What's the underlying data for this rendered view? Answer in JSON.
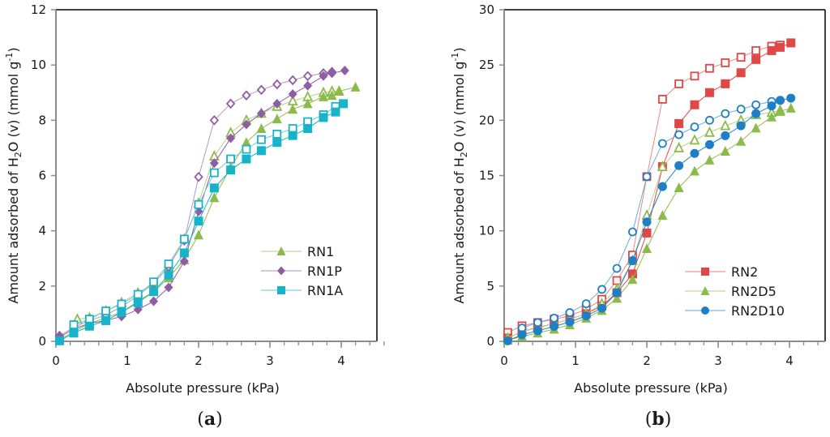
{
  "chart_data": [
    {
      "type": "line",
      "panel_label": "a",
      "title": "",
      "xlabel": "Absolute pressure (kPa)",
      "ylabel_main": "Amount adsorbed of H",
      "ylabel_sub": "2",
      "ylabel_mid": "O (v) (mmol g",
      "ylabel_sup": "-1",
      "ylabel_end": ")",
      "xlim": [
        0,
        4.5
      ],
      "ylim": [
        0,
        12
      ],
      "xticks": [
        0,
        1,
        2,
        3,
        4
      ],
      "xtick_labels": [
        "0",
        "1",
        "2",
        "3",
        "4"
      ],
      "yticks": [
        0,
        2,
        4,
        6,
        8,
        10,
        12
      ],
      "ytick_labels": [
        "0",
        "2",
        "4",
        "6",
        "8",
        "10",
        "12"
      ],
      "x_minor_step": 0.2,
      "grid": false,
      "legend_position": "lower-right",
      "series": [
        {
          "name": "RN1",
          "color": "#8dbb4b",
          "marker": "triangle",
          "adsorption": {
            "x": [
              0.05,
              0.25,
              0.47,
              0.7,
              0.92,
              1.15,
              1.37,
              1.58,
              1.8,
              2.0,
              2.22,
              2.45,
              2.67,
              2.88,
              3.1,
              3.32,
              3.53,
              3.75,
              3.87,
              3.97,
              4.2
            ],
            "y": [
              0.05,
              0.35,
              0.65,
              0.85,
              1.05,
              1.45,
              1.8,
              2.3,
              2.95,
              3.85,
              5.2,
              6.3,
              7.2,
              7.7,
              8.05,
              8.4,
              8.6,
              8.85,
              8.9,
              9.05,
              9.2
            ]
          },
          "desorption": {
            "x": [
              3.75,
              3.87,
              3.97,
              3.53,
              3.32,
              3.1,
              2.88,
              2.67,
              2.45,
              2.22,
              2.0,
              1.8,
              1.58,
              1.37,
              1.15,
              0.92,
              0.7,
              0.47,
              0.3
            ],
            "y": [
              9.0,
              9.05,
              9.05,
              8.85,
              8.7,
              8.5,
              8.25,
              8.0,
              7.55,
              6.7,
              5.0,
              3.7,
              2.7,
              2.1,
              1.75,
              1.4,
              1.1,
              0.85,
              0.8
            ]
          }
        },
        {
          "name": "RN1P",
          "color": "#8e5ea2",
          "marker": "diamond",
          "adsorption": {
            "x": [
              0.05,
              0.25,
              0.47,
              0.7,
              0.92,
              1.15,
              1.37,
              1.58,
              1.8,
              2.0,
              2.22,
              2.45,
              2.67,
              2.88,
              3.1,
              3.32,
              3.53,
              3.75,
              3.87,
              4.05
            ],
            "y": [
              0.15,
              0.45,
              0.65,
              0.75,
              0.9,
              1.15,
              1.45,
              1.95,
              2.9,
              4.7,
              6.45,
              7.35,
              7.85,
              8.25,
              8.6,
              8.95,
              9.25,
              9.6,
              9.7,
              9.8
            ]
          },
          "desorption": {
            "x": [
              3.87,
              3.75,
              3.53,
              3.32,
              3.1,
              2.88,
              2.67,
              2.45,
              2.22,
              2.0,
              1.8,
              1.58,
              1.37,
              1.15,
              0.92,
              0.7,
              0.47,
              0.25,
              0.05
            ],
            "y": [
              9.75,
              9.7,
              9.6,
              9.45,
              9.3,
              9.1,
              8.9,
              8.6,
              8.0,
              5.95,
              3.65,
              2.7,
              2.1,
              1.65,
              1.25,
              0.95,
              0.75,
              0.5,
              0.2
            ]
          }
        },
        {
          "name": "RN1A",
          "color": "#17b3c8",
          "marker": "square",
          "adsorption": {
            "x": [
              0.05,
              0.25,
              0.47,
              0.7,
              0.92,
              1.15,
              1.37,
              1.58,
              1.8,
              2.0,
              2.22,
              2.45,
              2.67,
              2.88,
              3.1,
              3.32,
              3.53,
              3.75,
              3.92,
              4.03
            ],
            "y": [
              0.02,
              0.3,
              0.55,
              0.75,
              1.05,
              1.4,
              1.8,
              2.4,
              3.2,
              4.35,
              5.55,
              6.2,
              6.6,
              6.9,
              7.2,
              7.45,
              7.7,
              8.1,
              8.3,
              8.6
            ]
          },
          "desorption": {
            "x": [
              3.92,
              3.75,
              3.53,
              3.32,
              3.1,
              2.88,
              2.67,
              2.45,
              2.22,
              2.0,
              1.8,
              1.58,
              1.37,
              1.15,
              0.92,
              0.7,
              0.47,
              0.25
            ],
            "y": [
              8.5,
              8.2,
              7.95,
              7.7,
              7.5,
              7.3,
              6.95,
              6.6,
              6.1,
              4.95,
              3.7,
              2.8,
              2.15,
              1.7,
              1.35,
              1.1,
              0.8,
              0.6
            ]
          }
        }
      ]
    },
    {
      "type": "line",
      "panel_label": "b",
      "title": "",
      "xlabel": "Absolute pressure (kPa)",
      "ylabel_main": "Amount adsorbed of H",
      "ylabel_sub": "2",
      "ylabel_mid": "O (v) (mmol g",
      "ylabel_sup": "-1",
      "ylabel_end": ")",
      "xlim": [
        0,
        4.5
      ],
      "ylim": [
        0,
        30
      ],
      "xticks": [
        0,
        1,
        2,
        3,
        4
      ],
      "xtick_labels": [
        "0",
        "1",
        "2",
        "3",
        "4"
      ],
      "yticks": [
        0,
        5,
        10,
        15,
        20,
        25,
        30
      ],
      "ytick_labels": [
        "0",
        "5",
        "10",
        "15",
        "20",
        "25",
        "30"
      ],
      "x_minor_step": 0.2,
      "grid": false,
      "legend_position": "lower-right",
      "series": [
        {
          "name": "RN2",
          "color": "#e04848",
          "marker": "square",
          "adsorption": {
            "x": [
              0.05,
              0.25,
              0.47,
              0.7,
              0.92,
              1.15,
              1.37,
              1.58,
              1.8,
              2.0,
              2.22,
              2.45,
              2.67,
              2.88,
              3.1,
              3.32,
              3.53,
              3.75,
              3.87,
              4.02
            ],
            "y": [
              0.3,
              0.9,
              1.25,
              1.6,
              2.0,
              2.5,
              3.2,
              4.4,
              6.1,
              9.8,
              15.8,
              19.7,
              21.4,
              22.5,
              23.3,
              24.3,
              25.5,
              26.3,
              26.6,
              27.0
            ]
          },
          "desorption": {
            "x": [
              3.87,
              3.75,
              3.53,
              3.32,
              3.1,
              2.88,
              2.67,
              2.45,
              2.22,
              2.0,
              1.8,
              1.58,
              1.37,
              1.15,
              0.92,
              0.7,
              0.47,
              0.25,
              0.05
            ],
            "y": [
              26.8,
              26.7,
              26.3,
              25.7,
              25.2,
              24.7,
              24.0,
              23.3,
              21.9,
              14.9,
              7.8,
              5.5,
              3.8,
              2.9,
              2.3,
              2.0,
              1.7,
              1.4,
              0.8
            ]
          }
        },
        {
          "name": "RN2D5",
          "color": "#8dbb4b",
          "marker": "triangle",
          "adsorption": {
            "x": [
              0.05,
              0.25,
              0.47,
              0.7,
              0.92,
              1.15,
              1.37,
              1.58,
              1.8,
              2.0,
              2.22,
              2.45,
              2.67,
              2.88,
              3.1,
              3.32,
              3.53,
              3.75,
              3.87,
              4.02
            ],
            "y": [
              0.1,
              0.45,
              0.75,
              1.1,
              1.5,
              2.1,
              2.8,
              3.9,
              5.6,
              8.4,
              11.4,
              13.9,
              15.4,
              16.4,
              17.2,
              18.1,
              19.3,
              20.3,
              20.8,
              21.1
            ]
          },
          "desorption": {
            "x": [
              3.87,
              3.75,
              3.53,
              3.32,
              3.1,
              2.88,
              2.67,
              2.45,
              2.22,
              2.0,
              1.8,
              1.58,
              1.37,
              1.15,
              0.92,
              0.7,
              0.47,
              0.25,
              0.05
            ],
            "y": [
              20.9,
              20.7,
              20.5,
              20.0,
              19.5,
              18.9,
              18.2,
              17.5,
              15.8,
              11.4,
              7.3,
              4.7,
              3.4,
              2.5,
              2.0,
              1.6,
              1.2,
              0.9,
              0.3
            ]
          }
        },
        {
          "name": "RN2D10",
          "color": "#1f7fc6",
          "marker": "circle",
          "adsorption": {
            "x": [
              0.05,
              0.25,
              0.47,
              0.7,
              0.92,
              1.15,
              1.37,
              1.58,
              1.8,
              2.0,
              2.22,
              2.45,
              2.67,
              2.88,
              3.1,
              3.32,
              3.53,
              3.75,
              3.87,
              4.02
            ],
            "y": [
              0.05,
              0.6,
              0.95,
              1.35,
              1.75,
              2.3,
              3.0,
              4.4,
              7.3,
              10.8,
              14.0,
              15.9,
              17.0,
              17.8,
              18.6,
              19.5,
              20.6,
              21.3,
              21.8,
              22.0
            ]
          },
          "desorption": {
            "x": [
              3.87,
              3.75,
              3.53,
              3.32,
              3.1,
              2.88,
              2.67,
              2.45,
              2.22,
              2.0,
              1.8,
              1.58,
              1.37,
              1.15,
              0.92,
              0.7,
              0.47,
              0.25
            ],
            "y": [
              21.8,
              21.7,
              21.4,
              21.0,
              20.6,
              20.0,
              19.4,
              18.7,
              17.9,
              14.9,
              9.9,
              6.6,
              4.7,
              3.4,
              2.6,
              2.1,
              1.7,
              1.2
            ]
          }
        }
      ]
    }
  ]
}
